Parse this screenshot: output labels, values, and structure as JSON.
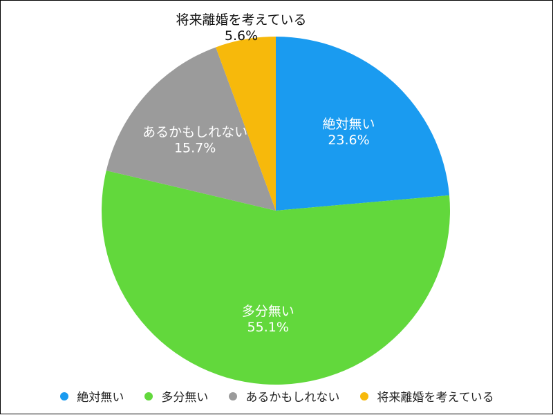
{
  "chart_data": {
    "type": "pie",
    "title": "",
    "categories": [
      "絶対無い",
      "多分無い",
      "あるかもしれない",
      "将来離婚を考えている"
    ],
    "values": [
      23.6,
      55.1,
      15.7,
      5.6
    ],
    "value_labels": [
      "23.6%",
      "55.1%",
      "15.7%",
      "5.6%"
    ],
    "colors": [
      "#1a9bf0",
      "#62d83c",
      "#9b9b9b",
      "#f7b90b"
    ],
    "label_colors": [
      "#ffffff",
      "#ffffff",
      "#ffffff",
      "#111111"
    ],
    "start": "12 o'clock",
    "direction": "clockwise",
    "legend_position": "bottom"
  },
  "legend": {
    "items": [
      {
        "label": "絶対無い"
      },
      {
        "label": "多分無い"
      },
      {
        "label": "あるかもしれない"
      },
      {
        "label": "将来離婚を考えている"
      }
    ]
  }
}
